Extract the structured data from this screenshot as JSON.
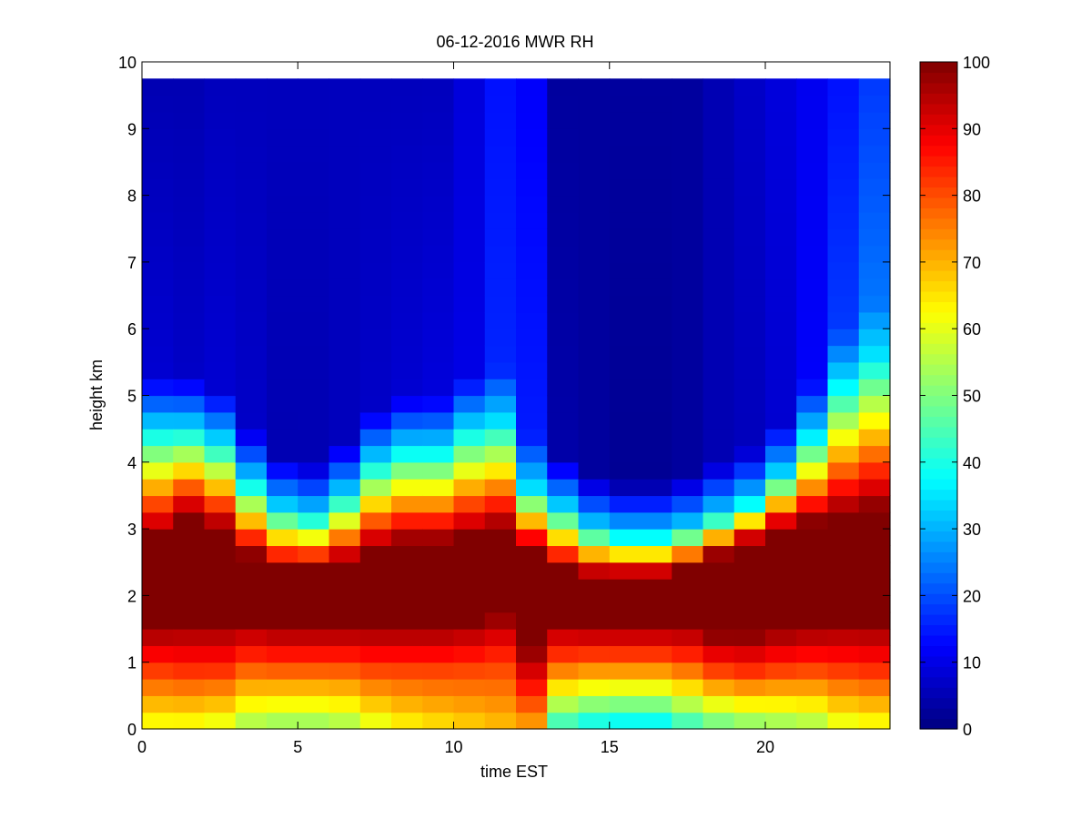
{
  "chart_data": {
    "type": "heatmap",
    "title": "06-12-2016 MWR RH",
    "xlabel": "time EST",
    "ylabel": "height km",
    "xlim": [
      0,
      24
    ],
    "ylim": [
      0,
      10
    ],
    "x_ticks": [
      0,
      5,
      10,
      15,
      20
    ],
    "y_ticks": [
      0,
      1,
      2,
      3,
      4,
      5,
      6,
      7,
      8,
      9,
      10
    ],
    "colormap": "jet",
    "colorbar": {
      "range": [
        0,
        100
      ],
      "ticks": [
        0,
        10,
        20,
        30,
        40,
        50,
        60,
        70,
        80,
        90,
        100
      ]
    },
    "grid": false,
    "x": [
      0.5,
      1.5,
      2.5,
      3.5,
      4.5,
      5.5,
      6.5,
      7.5,
      8.5,
      9.5,
      10.5,
      11.5,
      12.5,
      13.5,
      14.5,
      15.5,
      16.5,
      17.5,
      18.5,
      19.5,
      20.5,
      21.5,
      22.5,
      23.5
    ],
    "data_top_km": 9.75,
    "profiles": [
      {
        "base": 60,
        "bl": 83,
        "moist_bot": 1.55,
        "moist_top": 2.9,
        "trans_top": 4.5,
        "upper": 8,
        "top": 5
      },
      {
        "base": 60,
        "bl": 85,
        "moist_bot": 1.6,
        "moist_top": 3.2,
        "trans_top": 4.5,
        "upper": 7,
        "top": 5
      },
      {
        "base": 58,
        "bl": 85,
        "moist_bot": 1.6,
        "moist_top": 3.0,
        "trans_top": 4.3,
        "upper": 8,
        "top": 6
      },
      {
        "base": 52,
        "bl": 80,
        "moist_bot": 1.6,
        "moist_top": 2.6,
        "trans_top": 3.7,
        "upper": 7,
        "top": 6
      },
      {
        "base": 50,
        "bl": 80,
        "moist_bot": 1.55,
        "moist_top": 2.4,
        "trans_top": 3.3,
        "upper": 5,
        "top": 6
      },
      {
        "base": 50,
        "bl": 80,
        "moist_bot": 1.55,
        "moist_top": 2.4,
        "trans_top": 3.2,
        "upper": 5,
        "top": 6
      },
      {
        "base": 52,
        "bl": 80,
        "moist_bot": 1.55,
        "moist_top": 2.5,
        "trans_top": 3.5,
        "upper": 6,
        "top": 6
      },
      {
        "base": 58,
        "bl": 82,
        "moist_bot": 1.55,
        "moist_top": 2.7,
        "trans_top": 4.0,
        "upper": 7,
        "top": 6
      },
      {
        "base": 62,
        "bl": 82,
        "moist_bot": 1.55,
        "moist_top": 2.8,
        "trans_top": 4.2,
        "upper": 8,
        "top": 6
      },
      {
        "base": 64,
        "bl": 82,
        "moist_bot": 1.55,
        "moist_top": 2.8,
        "trans_top": 4.2,
        "upper": 9,
        "top": 6
      },
      {
        "base": 66,
        "bl": 82,
        "moist_bot": 1.6,
        "moist_top": 2.9,
        "trans_top": 4.5,
        "upper": 10,
        "top": 9
      },
      {
        "base": 68,
        "bl": 82,
        "moist_bot": 1.7,
        "moist_top": 3.0,
        "trans_top": 4.6,
        "upper": 16,
        "top": 14
      },
      {
        "base": 70,
        "bl": 88,
        "moist_bot": 1.2,
        "moist_top": 2.7,
        "trans_top": 3.6,
        "upper": 15,
        "top": 12
      },
      {
        "base": 40,
        "bl": 78,
        "moist_bot": 1.6,
        "moist_top": 2.4,
        "trans_top": 3.3,
        "upper": 4,
        "top": 3
      },
      {
        "base": 35,
        "bl": 75,
        "moist_bot": 1.55,
        "moist_top": 2.3,
        "trans_top": 3.0,
        "upper": 3,
        "top": 3
      },
      {
        "base": 33,
        "bl": 75,
        "moist_bot": 1.55,
        "moist_top": 2.3,
        "trans_top": 2.9,
        "upper": 2,
        "top": 3
      },
      {
        "base": 33,
        "bl": 75,
        "moist_bot": 1.55,
        "moist_top": 2.3,
        "trans_top": 2.9,
        "upper": 2,
        "top": 3
      },
      {
        "base": 40,
        "bl": 78,
        "moist_bot": 1.55,
        "moist_top": 2.4,
        "trans_top": 3.0,
        "upper": 3,
        "top": 3
      },
      {
        "base": 45,
        "bl": 80,
        "moist_bot": 1.4,
        "moist_top": 2.6,
        "trans_top": 3.2,
        "upper": 5,
        "top": 5
      },
      {
        "base": 48,
        "bl": 82,
        "moist_bot": 1.4,
        "moist_top": 2.8,
        "trans_top": 3.4,
        "upper": 6,
        "top": 7
      },
      {
        "base": 50,
        "bl": 82,
        "moist_bot": 1.5,
        "moist_top": 3.0,
        "trans_top": 3.8,
        "upper": 8,
        "top": 9
      },
      {
        "base": 52,
        "bl": 82,
        "moist_bot": 1.55,
        "moist_top": 3.1,
        "trans_top": 4.4,
        "upper": 12,
        "top": 11
      },
      {
        "base": 58,
        "bl": 84,
        "moist_bot": 1.6,
        "moist_top": 3.2,
        "trans_top": 5.2,
        "upper": 18,
        "top": 14
      },
      {
        "base": 60,
        "bl": 85,
        "moist_bot": 1.6,
        "moist_top": 3.3,
        "trans_top": 5.6,
        "upper": 24,
        "top": 18
      }
    ]
  }
}
